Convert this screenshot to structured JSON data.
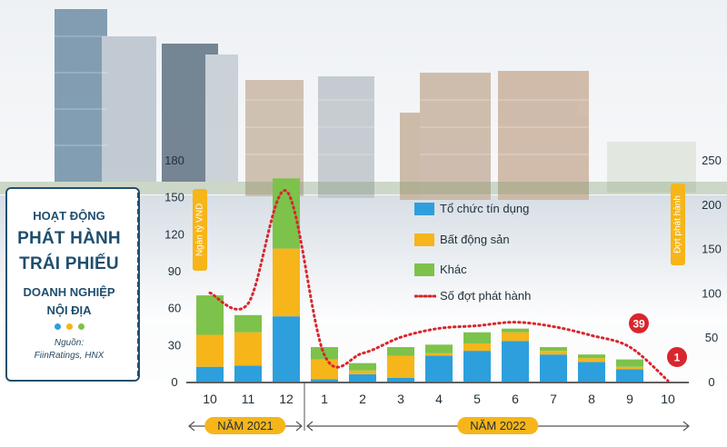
{
  "panel": {
    "title_line1": "HOẠT ĐỘNG",
    "title_line2": "PHÁT HÀNH",
    "title_line3": "TRÁI PHIẾU",
    "title_line4": "DOANH NGHIỆP",
    "title_line5": "NỘI ĐỊA",
    "source_label": "Nguồn:",
    "source_value": "FiinRatings, HNX",
    "dot_colors": [
      "#2d9fdc",
      "#f6b519",
      "#7dc24b"
    ]
  },
  "chart_data": {
    "type": "bar",
    "title": "",
    "categories": [
      "10",
      "11",
      "12",
      "1",
      "2",
      "3",
      "4",
      "5",
      "6",
      "7",
      "8",
      "9",
      "10"
    ],
    "year_groups": [
      {
        "label": "NĂM 2021",
        "categories": [
          "10",
          "11",
          "12"
        ]
      },
      {
        "label": "NĂM 2022",
        "categories": [
          "1",
          "2",
          "3",
          "4",
          "5",
          "6",
          "7",
          "8",
          "9",
          "10"
        ]
      }
    ],
    "ylabel_left": "Ngàn tỷ VND",
    "ylabel_right": "Đợt phát hành",
    "ylim_left": [
      0,
      180
    ],
    "yticks_left": [
      0,
      30,
      60,
      90,
      120,
      150,
      180
    ],
    "ylim_right": [
      0,
      250
    ],
    "yticks_right": [
      0,
      50,
      100,
      150,
      200,
      250
    ],
    "series": [
      {
        "name": "Tổ chức tín dụng",
        "color": "#2d9fdc",
        "values": [
          12,
          13,
          53,
          2,
          6,
          3,
          21,
          25,
          33,
          22,
          16,
          10,
          0
        ]
      },
      {
        "name": "Bất động sản",
        "color": "#f6b519",
        "values": [
          26,
          27,
          55,
          16,
          3,
          18,
          2,
          6,
          7,
          3,
          3,
          2,
          0
        ]
      },
      {
        "name": "Khác",
        "color": "#7dc24b",
        "values": [
          32,
          14,
          57,
          10,
          6,
          7,
          7,
          9,
          3,
          3,
          3,
          6,
          0
        ]
      }
    ],
    "line": {
      "name": "Số đợt phát hành",
      "color": "#d8262d",
      "values": [
        100,
        88,
        215,
        30,
        32,
        50,
        60,
        63,
        67,
        62,
        52,
        39,
        1
      ]
    },
    "annotations": [
      {
        "category_index": 11,
        "text": "39"
      },
      {
        "category_index": 12,
        "text": "1"
      }
    ],
    "legend": "right of plot, top",
    "grid": false
  }
}
